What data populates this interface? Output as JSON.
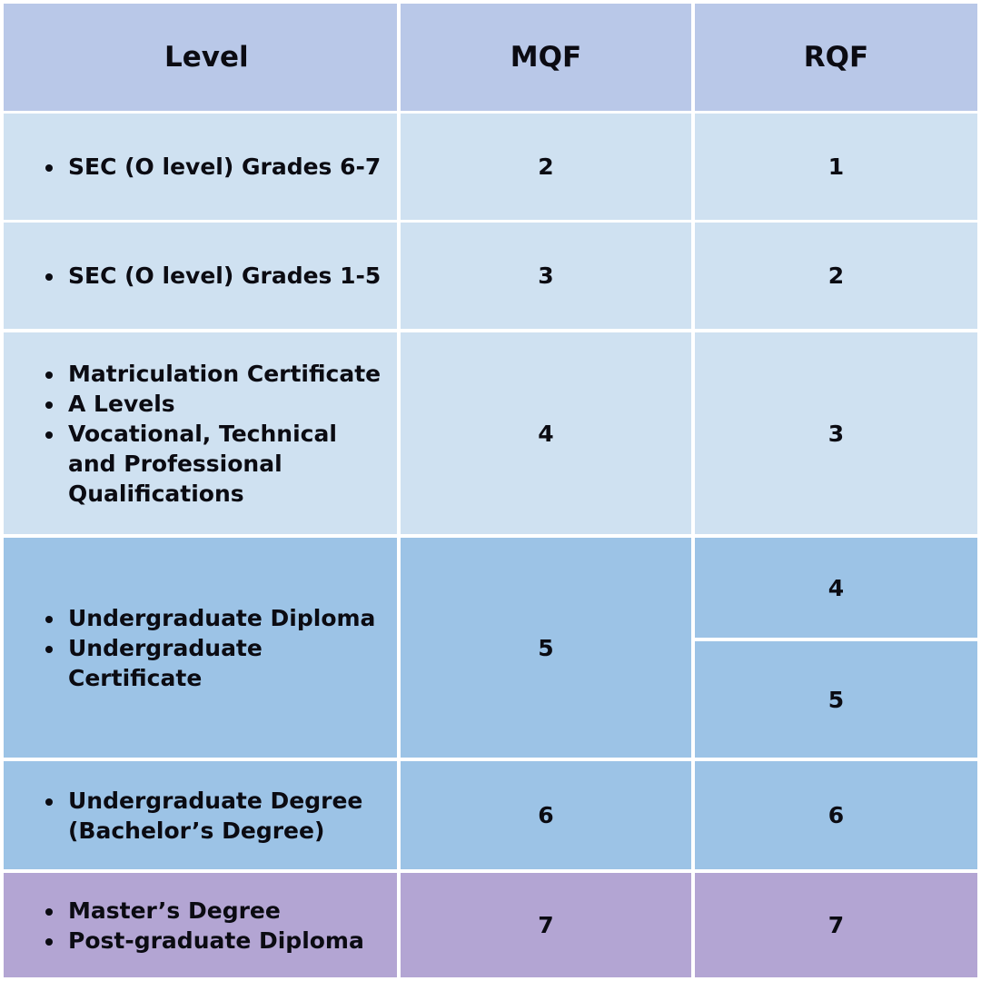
{
  "header": {
    "level": "Level",
    "mqf": "MQF",
    "rqf": "RQF"
  },
  "rows": [
    {
      "levels": [
        "SEC (O level) Grades 6-7"
      ],
      "mqf": "2",
      "rqf": [
        "1"
      ]
    },
    {
      "levels": [
        "SEC (O level) Grades 1-5"
      ],
      "mqf": "3",
      "rqf": [
        "2"
      ]
    },
    {
      "levels": [
        "Matriculation Certificate",
        "A Levels",
        "Vocational, Technical and Professional Qualifications"
      ],
      "mqf": "4",
      "rqf": [
        "3"
      ]
    },
    {
      "levels": [
        "Undergraduate Diploma",
        "Undergraduate Certificate"
      ],
      "mqf": "5",
      "rqf": [
        "4",
        "5"
      ]
    },
    {
      "levels": [
        "Undergraduate Degree (Bachelor’s Degree)"
      ],
      "mqf": "6",
      "rqf": [
        "6"
      ]
    },
    {
      "levels": [
        "Master’s Degree",
        "Post-graduate Diploma"
      ],
      "mqf": "7",
      "rqf": [
        "7"
      ]
    }
  ],
  "colors": {
    "header": "#b9c8e8",
    "light_blue": "#cfe1f1",
    "mid_blue": "#9cc3e6",
    "purple": "#b3a5d3",
    "grid_lines": "#ffffff"
  }
}
